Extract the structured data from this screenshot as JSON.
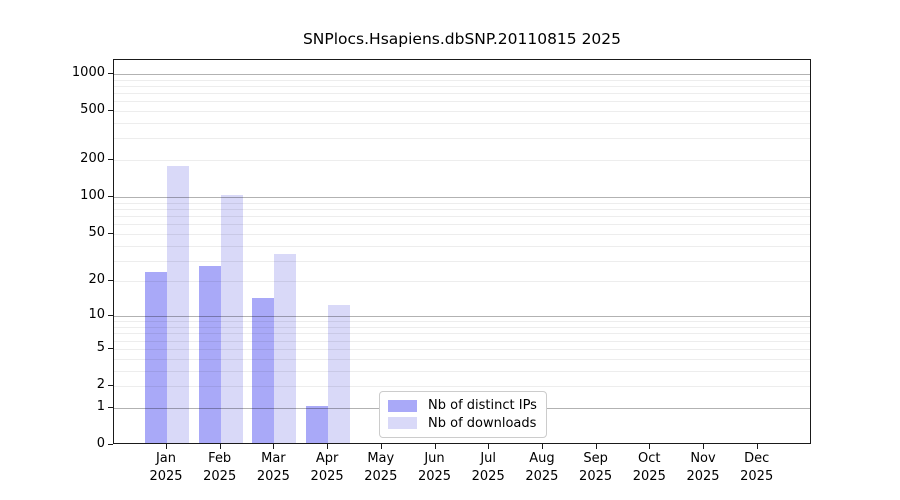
{
  "title": "SNPlocs.Hsapiens.dbSNP.20110815 2025",
  "chart_data": {
    "type": "bar",
    "title": "SNPlocs.Hsapiens.dbSNP.20110815 2025",
    "y_scale": "log10(1+x)",
    "categories": [
      "Jan",
      "Feb",
      "Mar",
      "Apr",
      "May",
      "Jun",
      "Jul",
      "Aug",
      "Sep",
      "Oct",
      "Nov",
      "Dec"
    ],
    "year_label": "2025",
    "series": [
      {
        "name": "Nb of distinct IPs",
        "color": "#a9a9f8",
        "values": [
          23,
          26,
          14,
          1,
          0,
          0,
          0,
          0,
          0,
          0,
          0,
          0
        ]
      },
      {
        "name": "Nb of downloads",
        "color": "#d9d9f8",
        "values": [
          173,
          100,
          33,
          12,
          0,
          0,
          0,
          0,
          0,
          0,
          0,
          0
        ]
      }
    ],
    "yticks": [
      0,
      1,
      2,
      5,
      10,
      20,
      50,
      100,
      200,
      500,
      1000
    ],
    "ylim": [
      0,
      1310
    ],
    "xlabel": "",
    "ylabel": "",
    "grid": true,
    "legend_position": "inside-bottom-center"
  }
}
